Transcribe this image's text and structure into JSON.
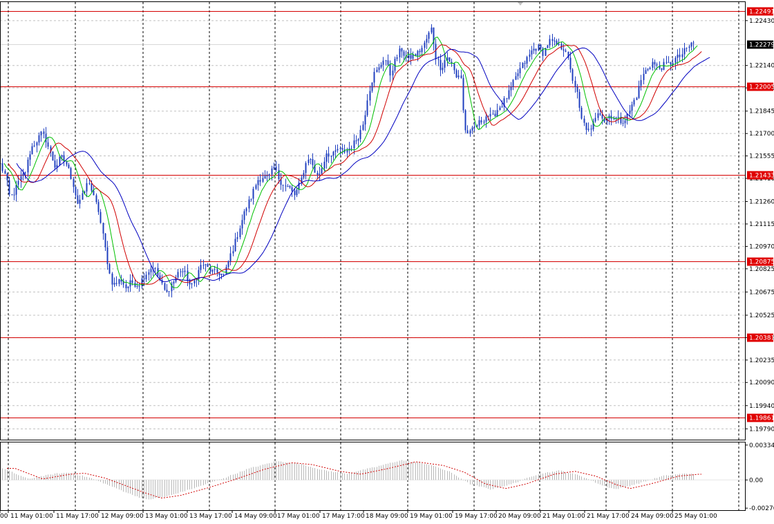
{
  "colors": {
    "background": "#ffffff",
    "grid": "#c0c0c0",
    "vgrid": "#000000",
    "candle": "#1f3fbf",
    "level_line": "#d40000",
    "level_tag": "#e00000",
    "ma_fast": "#00c000",
    "ma_mid": "#d00000",
    "ma_slow": "#0000c0",
    "osc_line": "#d00000",
    "osc_hist": "#b8b8b8",
    "current_tag": "#000000"
  },
  "chart_data": [
    {
      "type": "candlestick",
      "instrument_panel": "price",
      "ylim": [
        1.1972,
        1.2255
      ],
      "grid": true,
      "current_price": "1.22279",
      "y_ticks": [
        "1.22430",
        "1.22140",
        "1.21995",
        "1.21845",
        "1.21700",
        "1.21555",
        "1.21410",
        "1.21260",
        "1.21115",
        "1.20970",
        "1.20825",
        "1.20675",
        "1.20525",
        "1.20380",
        "1.20235",
        "1.20090",
        "1.19940",
        "1.19790"
      ],
      "x_labels": [
        "00",
        "11 May 01:00",
        "11 May 17:00",
        "12 May 09:00",
        "13 May 01:00",
        "13 May 17:00",
        "14 May 09:00",
        "17 May 01:00",
        "17 May 17:00",
        "18 May 09:00",
        "19 May 01:00",
        "19 May 17:00",
        "20 May 09:00",
        "21 May 01:00",
        "21 May 17:00",
        "24 May 09:00",
        "25 May 01:00"
      ],
      "levels": [
        {
          "label": "1.22491",
          "value": 1.22491
        },
        {
          "label": "1.22005",
          "value": 1.22005
        },
        {
          "label": "1.21433",
          "value": 1.21433
        },
        {
          "label": "1.20875",
          "value": 1.20875
        },
        {
          "label": "1.20381",
          "value": 1.20381
        },
        {
          "label": "1.19861",
          "value": 1.19861
        }
      ],
      "close_anchors": [
        [
          0,
          1.215
        ],
        [
          8,
          1.2142
        ],
        [
          14,
          1.2128
        ],
        [
          20,
          1.2132
        ],
        [
          28,
          1.214
        ],
        [
          36,
          1.2145
        ],
        [
          44,
          1.216
        ],
        [
          52,
          1.2165
        ],
        [
          60,
          1.217
        ],
        [
          66,
          1.2166
        ],
        [
          72,
          1.2158
        ],
        [
          80,
          1.2148
        ],
        [
          88,
          1.2155
        ],
        [
          96,
          1.215
        ],
        [
          104,
          1.214
        ],
        [
          112,
          1.2125
        ],
        [
          120,
          1.213
        ],
        [
          128,
          1.214
        ],
        [
          134,
          1.213
        ],
        [
          142,
          1.212
        ],
        [
          148,
          1.2105
        ],
        [
          154,
          1.209
        ],
        [
          160,
          1.2075
        ],
        [
          166,
          1.2072
        ],
        [
          174,
          1.2076
        ],
        [
          182,
          1.207
        ],
        [
          190,
          1.2074
        ],
        [
          200,
          1.2072
        ],
        [
          208,
          1.2078
        ],
        [
          216,
          1.2082
        ],
        [
          222,
          1.2084
        ],
        [
          232,
          1.2074
        ],
        [
          240,
          1.2066
        ],
        [
          246,
          1.2072
        ],
        [
          252,
          1.2075
        ],
        [
          260,
          1.2082
        ],
        [
          268,
          1.2079
        ],
        [
          276,
          1.207
        ],
        [
          284,
          1.2078
        ],
        [
          292,
          1.2086
        ],
        [
          300,
          1.2083
        ],
        [
          308,
          1.208
        ],
        [
          316,
          1.208
        ],
        [
          324,
          1.2078
        ],
        [
          332,
          1.209
        ],
        [
          340,
          1.21
        ],
        [
          348,
          1.2112
        ],
        [
          356,
          1.2122
        ],
        [
          364,
          1.213
        ],
        [
          372,
          1.214
        ],
        [
          380,
          1.2142
        ],
        [
          388,
          1.2141
        ],
        [
          396,
          1.2148
        ],
        [
          404,
          1.214
        ],
        [
          412,
          1.2136
        ],
        [
          418,
          1.2135
        ],
        [
          426,
          1.213
        ],
        [
          434,
          1.2138
        ],
        [
          440,
          1.2148
        ],
        [
          446,
          1.2155
        ],
        [
          452,
          1.215
        ],
        [
          458,
          1.2142
        ],
        [
          464,
          1.2146
        ],
        [
          472,
          1.2158
        ],
        [
          480,
          1.2155
        ],
        [
          488,
          1.216
        ],
        [
          496,
          1.2158
        ],
        [
          504,
          1.216
        ],
        [
          512,
          1.2164
        ],
        [
          520,
          1.217
        ],
        [
          526,
          1.2178
        ],
        [
          532,
          1.2195
        ],
        [
          540,
          1.2208
        ],
        [
          548,
          1.2212
        ],
        [
          556,
          1.222
        ],
        [
          564,
          1.2208
        ],
        [
          572,
          1.2218
        ],
        [
          580,
          1.2225
        ],
        [
          588,
          1.2218
        ],
        [
          596,
          1.222
        ],
        [
          604,
          1.2222
        ],
        [
          612,
          1.2226
        ],
        [
          618,
          1.2232
        ],
        [
          624,
          1.2238
        ],
        [
          630,
          1.222
        ],
        [
          638,
          1.2212
        ],
        [
          646,
          1.222
        ],
        [
          654,
          1.2214
        ],
        [
          660,
          1.2206
        ],
        [
          666,
          1.221
        ],
        [
          672,
          1.2172
        ],
        [
          680,
          1.217
        ],
        [
          688,
          1.2175
        ],
        [
          696,
          1.2178
        ],
        [
          704,
          1.2182
        ],
        [
          712,
          1.218
        ],
        [
          720,
          1.2186
        ],
        [
          728,
          1.219
        ],
        [
          736,
          1.2196
        ],
        [
          744,
          1.2204
        ],
        [
          750,
          1.221
        ],
        [
          756,
          1.2214
        ],
        [
          762,
          1.2218
        ],
        [
          770,
          1.2224
        ],
        [
          778,
          1.2226
        ],
        [
          786,
          1.2222
        ],
        [
          794,
          1.223
        ],
        [
          802,
          1.2228
        ],
        [
          810,
          1.2226
        ],
        [
          818,
          1.2225
        ],
        [
          826,
          1.2208
        ],
        [
          834,
          1.2198
        ],
        [
          840,
          1.218
        ],
        [
          846,
          1.2175
        ],
        [
          854,
          1.217
        ],
        [
          860,
          1.218
        ],
        [
          866,
          1.2186
        ],
        [
          874,
          1.2178
        ],
        [
          882,
          1.2182
        ],
        [
          890,
          1.218
        ],
        [
          898,
          1.2178
        ],
        [
          906,
          1.218
        ],
        [
          914,
          1.2188
        ],
        [
          922,
          1.2196
        ],
        [
          928,
          1.2206
        ],
        [
          936,
          1.2212
        ],
        [
          944,
          1.2216
        ],
        [
          952,
          1.2212
        ],
        [
          960,
          1.2214
        ],
        [
          968,
          1.2215
        ],
        [
          976,
          1.2218
        ],
        [
          984,
          1.222
        ],
        [
          992,
          1.2224
        ],
        [
          1000,
          1.2228
        ],
        [
          1006,
          1.2229
        ]
      ],
      "moving_averages": [
        {
          "id": "fast",
          "period_bars": 5,
          "shift_px": 6,
          "color": "#00c000"
        },
        {
          "id": "mid",
          "period_bars": 10,
          "shift_px": 12,
          "color": "#d00000"
        },
        {
          "id": "slow",
          "period_bars": 18,
          "shift_px": 24,
          "color": "#0000c0"
        }
      ]
    },
    {
      "type": "histogram",
      "instrument_panel": "oscillator",
      "ylim": [
        -0.0029,
        0.0036
      ],
      "y_ticks": [
        "0.003349",
        "0.00",
        "-0.002707"
      ],
      "series": [
        {
          "values": [
            [
              0,
              0.0012
            ],
            [
              40,
              0.0001
            ],
            [
              80,
              0.0006
            ],
            [
              100,
              0.0007
            ],
            [
              130,
              0.0002
            ],
            [
              160,
              -0.0006
            ],
            [
              190,
              -0.0014
            ],
            [
              212,
              -0.0019
            ],
            [
              240,
              -0.0016
            ],
            [
              280,
              -0.0008
            ],
            [
              320,
              0.0001
            ],
            [
              360,
              0.0011
            ],
            [
              400,
              0.0018
            ],
            [
              430,
              0.0016
            ],
            [
              470,
              0.0009
            ],
            [
              500,
              0.0006
            ],
            [
              540,
              0.0012
            ],
            [
              580,
              0.0019
            ],
            [
              620,
              0.0015
            ],
            [
              650,
              0.0008
            ],
            [
              680,
              -0.0004
            ],
            [
              710,
              -0.0009
            ],
            [
              740,
              -0.0004
            ],
            [
              780,
              0.0006
            ],
            [
              810,
              0.0009
            ],
            [
              840,
              0.0004
            ],
            [
              870,
              -0.0005
            ],
            [
              890,
              -0.0009
            ],
            [
              920,
              -0.0004
            ],
            [
              960,
              0.0004
            ],
            [
              990,
              0.0006
            ],
            [
              1006,
              0.0006
            ]
          ]
        }
      ]
    }
  ]
}
